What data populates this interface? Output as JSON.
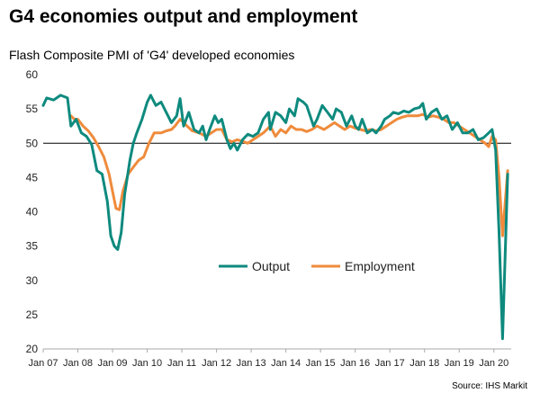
{
  "header": {
    "title": "G4 economies output and employment",
    "subtitle": "Flash Composite PMI of 'G4' developed economies"
  },
  "footer": {
    "source": "Source: IHS Markit"
  },
  "colors": {
    "output": "#0e8a7e",
    "employment": "#ef8b3c",
    "axis": "#aaaaaa",
    "reference": "#000000"
  },
  "chart_data": {
    "type": "line",
    "title": "",
    "xlabel": "",
    "ylabel": "",
    "ylim": [
      20,
      60
    ],
    "yticks": [
      20,
      25,
      30,
      35,
      40,
      45,
      50,
      55,
      60
    ],
    "xlim": [
      2007.0,
      2020.5
    ],
    "xtick_labels": [
      "Jan 07",
      "Jan 08",
      "Jan 09",
      "Jan 10",
      "Jan 11",
      "Jan 12",
      "Jan 13",
      "Jan 14",
      "Jan 15",
      "Jan 16",
      "Jan 17",
      "Jan 18",
      "Jan 19",
      "Jan 20"
    ],
    "reference_line": 50,
    "grid": false,
    "legend_position": "center",
    "series": [
      {
        "name": "Output",
        "color": "#0e8a7e",
        "points": [
          [
            2007.0,
            55.5
          ],
          [
            2007.1,
            56.6
          ],
          [
            2007.3,
            56.3
          ],
          [
            2007.5,
            57.0
          ],
          [
            2007.7,
            56.6
          ],
          [
            2007.8,
            52.5
          ],
          [
            2007.95,
            53.5
          ],
          [
            2008.1,
            51.5
          ],
          [
            2008.25,
            51.0
          ],
          [
            2008.4,
            49.8
          ],
          [
            2008.55,
            46.0
          ],
          [
            2008.7,
            45.5
          ],
          [
            2008.85,
            41.5
          ],
          [
            2008.95,
            36.5
          ],
          [
            2009.05,
            35.0
          ],
          [
            2009.15,
            34.5
          ],
          [
            2009.25,
            37.0
          ],
          [
            2009.35,
            42.5
          ],
          [
            2009.5,
            47.5
          ],
          [
            2009.6,
            50.0
          ],
          [
            2009.7,
            51.5
          ],
          [
            2009.85,
            53.5
          ],
          [
            2010.0,
            56.0
          ],
          [
            2010.1,
            57.0
          ],
          [
            2010.25,
            55.5
          ],
          [
            2010.4,
            56.0
          ],
          [
            2010.55,
            54.5
          ],
          [
            2010.7,
            53.0
          ],
          [
            2010.85,
            54.0
          ],
          [
            2010.95,
            56.5
          ],
          [
            2011.05,
            52.5
          ],
          [
            2011.2,
            54.5
          ],
          [
            2011.35,
            52.0
          ],
          [
            2011.5,
            51.5
          ],
          [
            2011.6,
            52.5
          ],
          [
            2011.7,
            50.5
          ],
          [
            2011.8,
            52.0
          ],
          [
            2011.95,
            54.0
          ],
          [
            2012.05,
            53.0
          ],
          [
            2012.15,
            53.5
          ],
          [
            2012.3,
            50.5
          ],
          [
            2012.4,
            49.2
          ],
          [
            2012.5,
            50.0
          ],
          [
            2012.6,
            49.0
          ],
          [
            2012.75,
            50.5
          ],
          [
            2012.9,
            51.3
          ],
          [
            2013.05,
            51.0
          ],
          [
            2013.2,
            51.5
          ],
          [
            2013.35,
            53.5
          ],
          [
            2013.5,
            54.5
          ],
          [
            2013.55,
            52.0
          ],
          [
            2013.7,
            54.5
          ],
          [
            2013.85,
            54.0
          ],
          [
            2014.0,
            53.0
          ],
          [
            2014.1,
            55.0
          ],
          [
            2014.25,
            54.0
          ],
          [
            2014.35,
            56.5
          ],
          [
            2014.5,
            56.0
          ],
          [
            2014.6,
            55.5
          ],
          [
            2014.7,
            54.0
          ],
          [
            2014.8,
            52.5
          ],
          [
            2014.9,
            53.5
          ],
          [
            2015.05,
            55.5
          ],
          [
            2015.2,
            54.5
          ],
          [
            2015.35,
            53.5
          ],
          [
            2015.45,
            55.0
          ],
          [
            2015.6,
            54.5
          ],
          [
            2015.75,
            52.5
          ],
          [
            2015.9,
            54.0
          ],
          [
            2016.0,
            52.5
          ],
          [
            2016.1,
            52.0
          ],
          [
            2016.2,
            53.5
          ],
          [
            2016.35,
            51.5
          ],
          [
            2016.5,
            52.0
          ],
          [
            2016.6,
            51.5
          ],
          [
            2016.75,
            52.5
          ],
          [
            2016.85,
            53.5
          ],
          [
            2017.0,
            54.0
          ],
          [
            2017.1,
            54.5
          ],
          [
            2017.25,
            54.3
          ],
          [
            2017.4,
            54.7
          ],
          [
            2017.55,
            54.5
          ],
          [
            2017.7,
            55.0
          ],
          [
            2017.85,
            55.2
          ],
          [
            2017.95,
            55.8
          ],
          [
            2018.05,
            53.5
          ],
          [
            2018.2,
            54.5
          ],
          [
            2018.35,
            55.0
          ],
          [
            2018.5,
            53.5
          ],
          [
            2018.65,
            54.0
          ],
          [
            2018.8,
            52.0
          ],
          [
            2018.95,
            53.0
          ],
          [
            2019.1,
            51.5
          ],
          [
            2019.25,
            51.5
          ],
          [
            2019.4,
            52.0
          ],
          [
            2019.55,
            50.5
          ],
          [
            2019.7,
            50.8
          ],
          [
            2019.85,
            51.5
          ],
          [
            2019.95,
            52.0
          ],
          [
            2020.05,
            49.0
          ],
          [
            2020.15,
            37.0
          ],
          [
            2020.25,
            21.5
          ],
          [
            2020.4,
            45.5
          ]
        ]
      },
      {
        "name": "Employment",
        "color": "#ef8b3c",
        "points": [
          [
            2007.8,
            54.0
          ],
          [
            2007.9,
            53.5
          ],
          [
            2008.0,
            53.5
          ],
          [
            2008.15,
            52.5
          ],
          [
            2008.3,
            51.8
          ],
          [
            2008.45,
            50.8
          ],
          [
            2008.6,
            49.5
          ],
          [
            2008.75,
            48.0
          ],
          [
            2008.9,
            45.5
          ],
          [
            2009.0,
            43.0
          ],
          [
            2009.1,
            40.5
          ],
          [
            2009.2,
            40.3
          ],
          [
            2009.3,
            43.0
          ],
          [
            2009.45,
            45.5
          ],
          [
            2009.6,
            46.5
          ],
          [
            2009.75,
            47.5
          ],
          [
            2009.9,
            48.0
          ],
          [
            2010.05,
            50.0
          ],
          [
            2010.2,
            51.5
          ],
          [
            2010.4,
            51.5
          ],
          [
            2010.55,
            51.8
          ],
          [
            2010.7,
            52.0
          ],
          [
            2010.8,
            52.5
          ],
          [
            2010.95,
            53.5
          ],
          [
            2011.15,
            52.5
          ],
          [
            2011.3,
            51.8
          ],
          [
            2011.5,
            51.5
          ],
          [
            2011.7,
            51.0
          ],
          [
            2011.85,
            51.5
          ],
          [
            2012.0,
            52.0
          ],
          [
            2012.15,
            52.0
          ],
          [
            2012.3,
            50.5
          ],
          [
            2012.45,
            50.2
          ],
          [
            2012.6,
            50.5
          ],
          [
            2012.75,
            50.3
          ],
          [
            2012.9,
            50.0
          ],
          [
            2013.05,
            50.5
          ],
          [
            2013.2,
            51.0
          ],
          [
            2013.35,
            51.5
          ],
          [
            2013.55,
            52.5
          ],
          [
            2013.7,
            51.0
          ],
          [
            2013.85,
            52.0
          ],
          [
            2014.0,
            51.5
          ],
          [
            2014.15,
            52.5
          ],
          [
            2014.3,
            52.0
          ],
          [
            2014.45,
            52.0
          ],
          [
            2014.6,
            51.7
          ],
          [
            2014.75,
            52.0
          ],
          [
            2014.9,
            52.5
          ],
          [
            2015.1,
            52.0
          ],
          [
            2015.25,
            52.5
          ],
          [
            2015.4,
            53.0
          ],
          [
            2015.55,
            52.5
          ],
          [
            2015.7,
            52.0
          ],
          [
            2015.85,
            52.5
          ],
          [
            2016.0,
            52.2
          ],
          [
            2016.15,
            52.0
          ],
          [
            2016.3,
            51.8
          ],
          [
            2016.45,
            52.0
          ],
          [
            2016.6,
            51.8
          ],
          [
            2016.75,
            52.0
          ],
          [
            2016.9,
            52.5
          ],
          [
            2017.05,
            53.0
          ],
          [
            2017.2,
            53.5
          ],
          [
            2017.35,
            53.8
          ],
          [
            2017.5,
            54.0
          ],
          [
            2017.65,
            54.0
          ],
          [
            2017.8,
            54.0
          ],
          [
            2017.95,
            54.2
          ],
          [
            2018.1,
            53.8
          ],
          [
            2018.25,
            54.0
          ],
          [
            2018.4,
            53.8
          ],
          [
            2018.55,
            53.5
          ],
          [
            2018.7,
            53.0
          ],
          [
            2018.85,
            53.0
          ],
          [
            2019.0,
            52.5
          ],
          [
            2019.15,
            52.0
          ],
          [
            2019.3,
            51.5
          ],
          [
            2019.45,
            51.0
          ],
          [
            2019.6,
            50.5
          ],
          [
            2019.75,
            50.0
          ],
          [
            2019.85,
            49.5
          ],
          [
            2019.95,
            51.0
          ],
          [
            2020.05,
            50.5
          ],
          [
            2020.15,
            45.0
          ],
          [
            2020.25,
            36.5
          ],
          [
            2020.4,
            46.0
          ]
        ]
      }
    ]
  }
}
